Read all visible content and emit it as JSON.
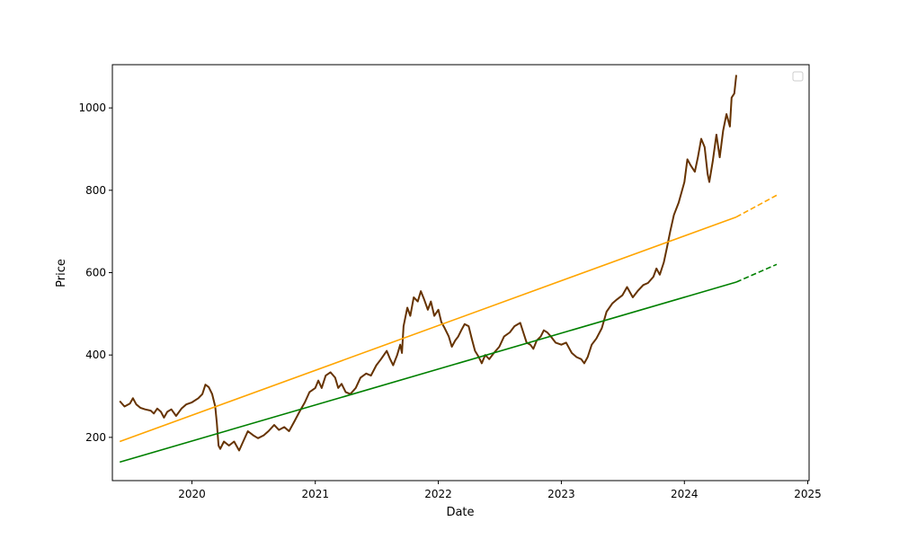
{
  "chart_data": {
    "type": "line",
    "xlabel": "Date",
    "ylabel": "Price",
    "xlim": [
      "2019-05-10",
      "2025-01-05"
    ],
    "ylim": [
      95,
      1105
    ],
    "x_ticks": [
      "2020",
      "2021",
      "2022",
      "2023",
      "2024",
      "2025"
    ],
    "y_ticks": [
      200,
      400,
      600,
      800,
      1000
    ],
    "grid": false,
    "legend": {
      "placement": "top-right",
      "entries": []
    },
    "series": [
      {
        "style": "solid",
        "color": "#663300",
        "points": [
          [
            "2019-06-01",
            288
          ],
          [
            "2019-06-15",
            275
          ],
          [
            "2019-07-01",
            282
          ],
          [
            "2019-07-10",
            295
          ],
          [
            "2019-07-20",
            280
          ],
          [
            "2019-08-01",
            272
          ],
          [
            "2019-08-15",
            268
          ],
          [
            "2019-09-01",
            265
          ],
          [
            "2019-09-10",
            258
          ],
          [
            "2019-09-20",
            270
          ],
          [
            "2019-10-01",
            262
          ],
          [
            "2019-10-10",
            248
          ],
          [
            "2019-10-20",
            262
          ],
          [
            "2019-11-01",
            268
          ],
          [
            "2019-11-15",
            252
          ],
          [
            "2019-12-01",
            270
          ],
          [
            "2019-12-15",
            280
          ],
          [
            "2020-01-01",
            285
          ],
          [
            "2020-01-20",
            295
          ],
          [
            "2020-02-01",
            305
          ],
          [
            "2020-02-10",
            328
          ],
          [
            "2020-02-20",
            322
          ],
          [
            "2020-03-01",
            305
          ],
          [
            "2020-03-10",
            275
          ],
          [
            "2020-03-15",
            235
          ],
          [
            "2020-03-20",
            180
          ],
          [
            "2020-03-25",
            172
          ],
          [
            "2020-04-05",
            190
          ],
          [
            "2020-04-20",
            180
          ],
          [
            "2020-05-05",
            190
          ],
          [
            "2020-05-20",
            168
          ],
          [
            "2020-06-01",
            190
          ],
          [
            "2020-06-15",
            215
          ],
          [
            "2020-07-01",
            205
          ],
          [
            "2020-07-15",
            198
          ],
          [
            "2020-08-01",
            205
          ],
          [
            "2020-08-15",
            215
          ],
          [
            "2020-09-01",
            230
          ],
          [
            "2020-09-15",
            218
          ],
          [
            "2020-10-01",
            225
          ],
          [
            "2020-10-15",
            215
          ],
          [
            "2020-11-01",
            240
          ],
          [
            "2020-11-15",
            262
          ],
          [
            "2020-12-01",
            285
          ],
          [
            "2020-12-15",
            310
          ],
          [
            "2021-01-01",
            320
          ],
          [
            "2021-01-10",
            338
          ],
          [
            "2021-01-20",
            320
          ],
          [
            "2021-02-01",
            350
          ],
          [
            "2021-02-15",
            358
          ],
          [
            "2021-03-01",
            345
          ],
          [
            "2021-03-10",
            320
          ],
          [
            "2021-03-20",
            330
          ],
          [
            "2021-04-01",
            310
          ],
          [
            "2021-04-15",
            305
          ],
          [
            "2021-05-01",
            320
          ],
          [
            "2021-05-15",
            345
          ],
          [
            "2021-06-01",
            355
          ],
          [
            "2021-06-15",
            350
          ],
          [
            "2021-07-01",
            375
          ],
          [
            "2021-07-15",
            390
          ],
          [
            "2021-08-01",
            410
          ],
          [
            "2021-08-10",
            392
          ],
          [
            "2021-08-20",
            375
          ],
          [
            "2021-09-01",
            400
          ],
          [
            "2021-09-10",
            425
          ],
          [
            "2021-09-15",
            405
          ],
          [
            "2021-09-20",
            470
          ],
          [
            "2021-10-01",
            515
          ],
          [
            "2021-10-10",
            495
          ],
          [
            "2021-10-20",
            540
          ],
          [
            "2021-11-01",
            530
          ],
          [
            "2021-11-10",
            555
          ],
          [
            "2021-11-20",
            535
          ],
          [
            "2021-12-01",
            510
          ],
          [
            "2021-12-10",
            530
          ],
          [
            "2021-12-20",
            495
          ],
          [
            "2022-01-01",
            510
          ],
          [
            "2022-01-10",
            480
          ],
          [
            "2022-01-20",
            465
          ],
          [
            "2022-02-01",
            445
          ],
          [
            "2022-02-10",
            420
          ],
          [
            "2022-02-20",
            435
          ],
          [
            "2022-03-01",
            445
          ],
          [
            "2022-03-10",
            460
          ],
          [
            "2022-03-20",
            475
          ],
          [
            "2022-04-01",
            470
          ],
          [
            "2022-04-10",
            440
          ],
          [
            "2022-04-20",
            410
          ],
          [
            "2022-05-01",
            395
          ],
          [
            "2022-05-10",
            380
          ],
          [
            "2022-05-20",
            400
          ],
          [
            "2022-06-01",
            390
          ],
          [
            "2022-06-15",
            405
          ],
          [
            "2022-07-01",
            420
          ],
          [
            "2022-07-15",
            445
          ],
          [
            "2022-08-01",
            455
          ],
          [
            "2022-08-15",
            470
          ],
          [
            "2022-09-01",
            478
          ],
          [
            "2022-09-10",
            455
          ],
          [
            "2022-09-20",
            430
          ],
          [
            "2022-10-01",
            425
          ],
          [
            "2022-10-10",
            415
          ],
          [
            "2022-10-20",
            435
          ],
          [
            "2022-11-01",
            445
          ],
          [
            "2022-11-10",
            460
          ],
          [
            "2022-11-20",
            455
          ],
          [
            "2022-12-01",
            445
          ],
          [
            "2022-12-15",
            430
          ],
          [
            "2023-01-01",
            425
          ],
          [
            "2023-01-15",
            430
          ],
          [
            "2023-02-01",
            405
          ],
          [
            "2023-02-15",
            395
          ],
          [
            "2023-03-01",
            390
          ],
          [
            "2023-03-10",
            380
          ],
          [
            "2023-03-20",
            395
          ],
          [
            "2023-04-01",
            425
          ],
          [
            "2023-04-15",
            440
          ],
          [
            "2023-05-01",
            465
          ],
          [
            "2023-05-15",
            505
          ],
          [
            "2023-06-01",
            525
          ],
          [
            "2023-06-15",
            535
          ],
          [
            "2023-07-01",
            545
          ],
          [
            "2023-07-15",
            565
          ],
          [
            "2023-08-01",
            540
          ],
          [
            "2023-08-15",
            555
          ],
          [
            "2023-09-01",
            570
          ],
          [
            "2023-09-15",
            575
          ],
          [
            "2023-10-01",
            590
          ],
          [
            "2023-10-10",
            610
          ],
          [
            "2023-10-20",
            595
          ],
          [
            "2023-11-01",
            625
          ],
          [
            "2023-11-10",
            660
          ],
          [
            "2023-11-20",
            700
          ],
          [
            "2023-12-01",
            740
          ],
          [
            "2023-12-15",
            770
          ],
          [
            "2024-01-01",
            820
          ],
          [
            "2024-01-10",
            875
          ],
          [
            "2024-01-20",
            860
          ],
          [
            "2024-02-01",
            845
          ],
          [
            "2024-02-10",
            880
          ],
          [
            "2024-02-20",
            925
          ],
          [
            "2024-03-01",
            905
          ],
          [
            "2024-03-10",
            840
          ],
          [
            "2024-03-15",
            820
          ],
          [
            "2024-03-25",
            870
          ],
          [
            "2024-04-05",
            935
          ],
          [
            "2024-04-15",
            880
          ],
          [
            "2024-04-25",
            945
          ],
          [
            "2024-05-05",
            985
          ],
          [
            "2024-05-15",
            955
          ],
          [
            "2024-05-20",
            1025
          ],
          [
            "2024-05-28",
            1035
          ],
          [
            "2024-06-03",
            1080
          ]
        ]
      },
      {
        "style": "solid",
        "color": "#ffa500",
        "points": [
          [
            "2019-06-01",
            190
          ],
          [
            "2024-06-03",
            735
          ]
        ]
      },
      {
        "style": "dashed",
        "color": "#ffa500",
        "points": [
          [
            "2024-06-03",
            735
          ],
          [
            "2024-10-01",
            788
          ]
        ]
      },
      {
        "style": "solid",
        "color": "#008000",
        "points": [
          [
            "2019-06-01",
            140
          ],
          [
            "2024-06-03",
            577
          ]
        ]
      },
      {
        "style": "dashed",
        "color": "#008000",
        "points": [
          [
            "2024-06-03",
            577
          ],
          [
            "2024-10-01",
            620
          ]
        ]
      }
    ]
  }
}
